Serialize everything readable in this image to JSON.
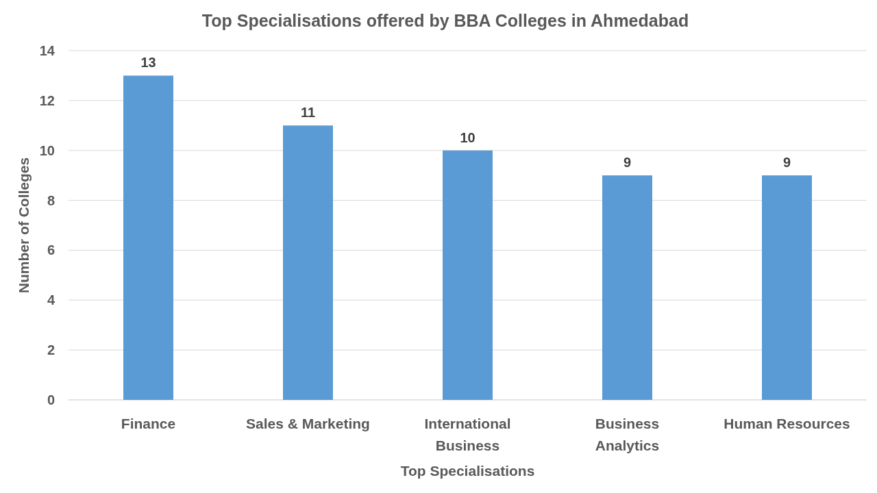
{
  "chart_data": {
    "type": "bar",
    "title": "Top Specialisations offered by BBA Colleges in Ahmedabad",
    "xlabel": "Top Specialisations",
    "ylabel": "Number of Colleges",
    "categories": [
      "Finance",
      "Sales & Marketing",
      "International Business",
      "Business Analytics",
      "Human Resources"
    ],
    "values": [
      13,
      11,
      10,
      9,
      9
    ],
    "color": "#5b9bd5",
    "data_labels": true,
    "ylim": [
      0,
      14
    ],
    "yticks": [
      0,
      2,
      4,
      6,
      8,
      10,
      12,
      14
    ],
    "grid": "y"
  }
}
